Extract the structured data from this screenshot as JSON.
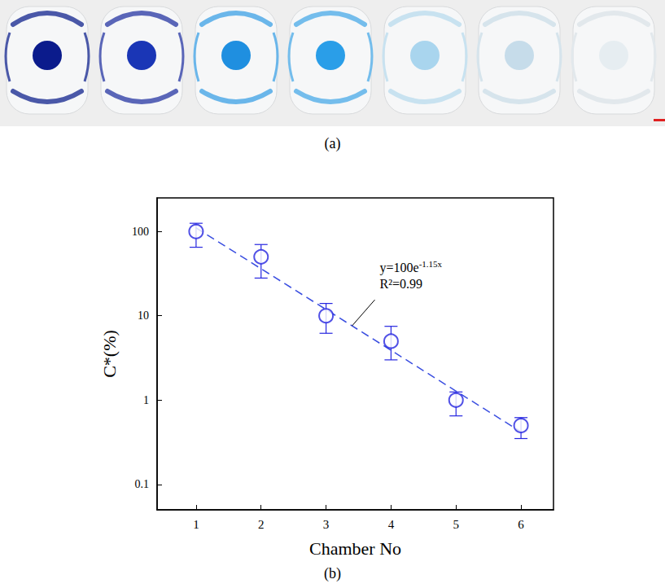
{
  "panel_labels": [
    "(a)",
    "(b)"
  ],
  "chart_data": {
    "type": "scatter",
    "x_label": "Chamber No",
    "y_label": "C*(%)",
    "log": "y",
    "grid": false,
    "xlim": [
      0.4,
      6.5
    ],
    "xticks": [
      1,
      2,
      3,
      4,
      5,
      6
    ],
    "ylim": [
      0.05,
      250
    ],
    "yticks": [
      0.1,
      1,
      10,
      100
    ],
    "series": [
      {
        "type": "scatter",
        "marker": "circle-open",
        "color": "#2626e0",
        "x": [
          1,
          2,
          3,
          4,
          5,
          6
        ],
        "values": [
          100,
          50,
          10,
          5,
          1,
          0.5
        ],
        "error_low": [
          65,
          28,
          6.2,
          3,
          0.65,
          0.35
        ],
        "error_high": [
          125,
          70,
          14,
          7.5,
          1.25,
          0.62
        ]
      },
      {
        "type": "line",
        "line_style": "dashed",
        "color": "#3a4ee0",
        "x": [
          1,
          6
        ],
        "values": [
          110,
          0.42
        ]
      }
    ],
    "annotation": {
      "equation": [
        "y=100e",
        "-1.15x"
      ],
      "r2": "R²=0.99"
    }
  }
}
